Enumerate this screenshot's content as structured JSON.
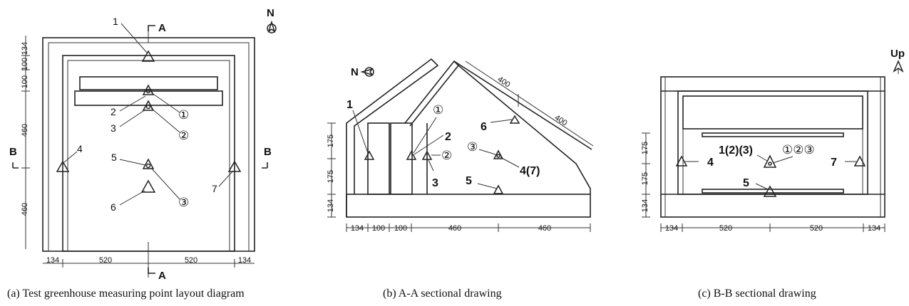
{
  "panels": {
    "a": {
      "caption": "(a) Test greenhouse measuring point layout diagram",
      "north_label": "N",
      "section_mark": "A",
      "section_mark_bottom": "A",
      "side_left": "B",
      "side_right": "B",
      "points": [
        "1",
        "2",
        "3",
        "4",
        "5",
        "6",
        "7"
      ],
      "circled": [
        "①",
        "②",
        "③"
      ],
      "dims_horizontal": [
        "134",
        "520",
        "520",
        "134"
      ],
      "dims_vertical": [
        "134",
        "100",
        "100",
        "460",
        "460"
      ]
    },
    "b": {
      "caption": "(b) A-A sectional drawing",
      "north_label": "N",
      "points": [
        "1",
        "2",
        "3",
        "5",
        "6",
        "4(7)"
      ],
      "circled": [
        "①",
        "②",
        "③"
      ],
      "dims_horizontal": [
        "134",
        "100",
        "100",
        "460",
        "460"
      ],
      "dims_vertical": [
        "175",
        "175",
        "134"
      ],
      "dims_roof": [
        "400",
        "400"
      ]
    },
    "c": {
      "caption": "(c) B-B sectional drawing",
      "up_label": "Up",
      "points": [
        "1(2)(3)",
        "4",
        "5",
        "7"
      ],
      "circled_group": "①②③",
      "dims_horizontal": [
        "134",
        "520",
        "520",
        "134"
      ],
      "dims_vertical": [
        "175",
        "175",
        "134"
      ]
    }
  }
}
